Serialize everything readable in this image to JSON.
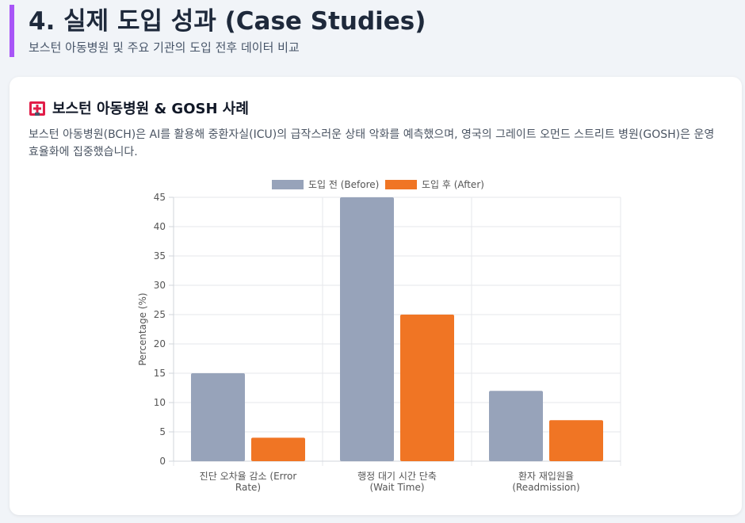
{
  "header": {
    "title": "4. 실제 도입 성과 (Case Studies)",
    "subtitle": "보스턴 아동병원 및 주요 기관의 도입 전후 데이터 비교"
  },
  "card": {
    "icon": "hospital-icon",
    "title": "보스턴 아동병원 & GOSH 사례",
    "description": "보스턴 아동병원(BCH)은 AI를 활용해 중환자실(ICU)의 급작스러운 상태 악화를 예측했으며, 영국의 그레이트 오먼드 스트리트 병원(GOSH)은 운영 효율화에 집중했습니다."
  },
  "colors": {
    "accent": "#a855f7",
    "before": "#97a3ba",
    "after": "#f07524"
  },
  "chart_data": {
    "type": "bar",
    "categories": [
      [
        "진단 오차율 감소 (Error",
        "Rate)"
      ],
      [
        "행정 대기 시간 단축",
        "(Wait Time)"
      ],
      [
        "환자 재입원율",
        "(Readmission)"
      ]
    ],
    "series": [
      {
        "name": "도입 전 (Before)",
        "values": [
          15,
          45,
          12
        ]
      },
      {
        "name": "도입 후 (After)",
        "values": [
          4,
          25,
          7
        ]
      }
    ],
    "ylabel": "Percentage (%)",
    "ylim": [
      0,
      45
    ],
    "yticks": [
      0,
      5,
      10,
      15,
      20,
      25,
      30,
      35,
      40,
      45
    ],
    "grid": true,
    "legend": "top-center"
  }
}
